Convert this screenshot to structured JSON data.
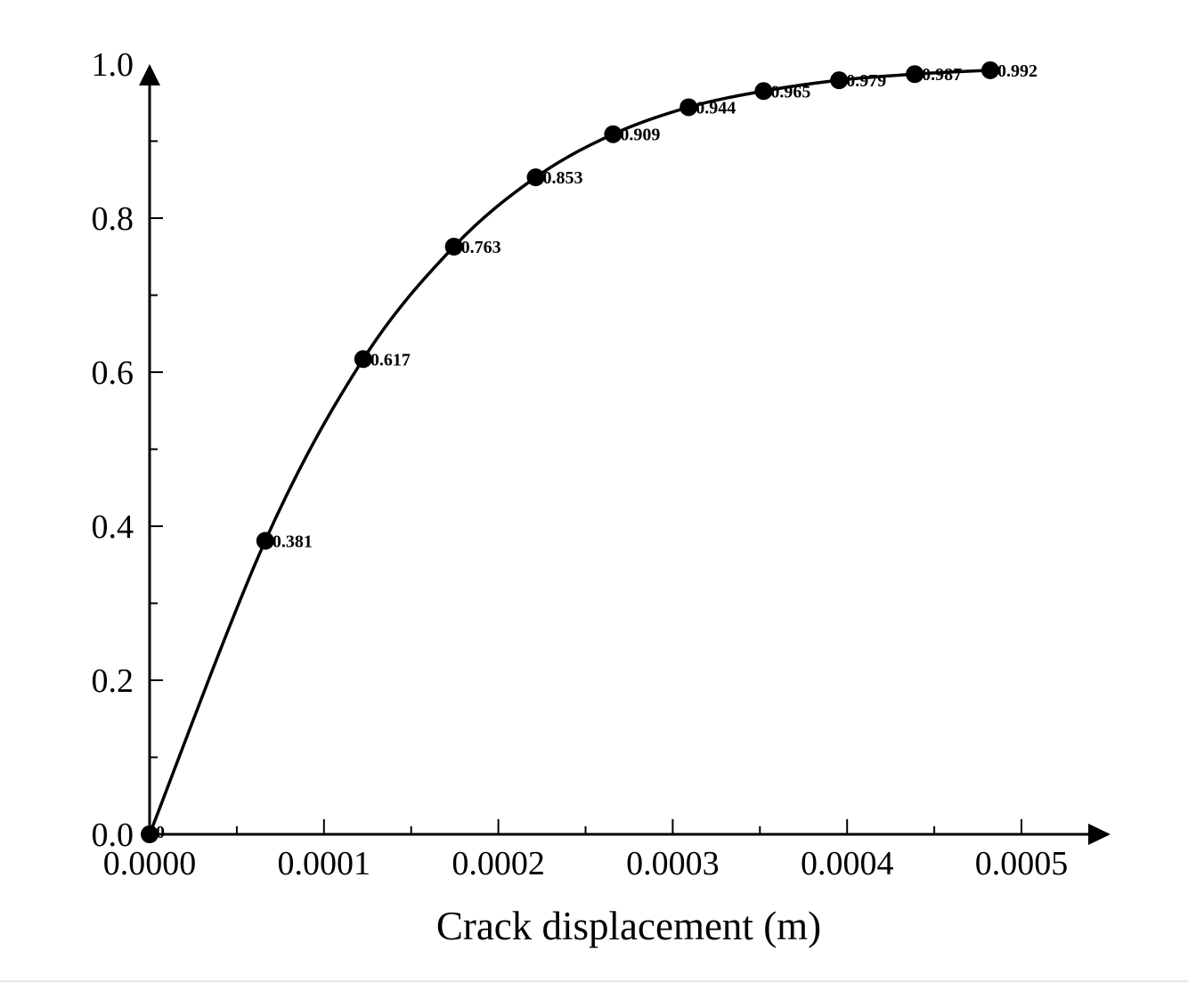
{
  "chart_data": {
    "type": "line",
    "title": "",
    "xlabel": "Crack displacement (m)",
    "ylabel": "",
    "xlim": [
      0,
      0.0005
    ],
    "ylim": [
      0,
      1.0
    ],
    "grid": false,
    "x_ticks": [
      "0.0000",
      "0.0001",
      "0.0002",
      "0.0003",
      "0.0004",
      "0.0005"
    ],
    "y_ticks": [
      "0.0",
      "0.2",
      "0.4",
      "0.6",
      "0.8",
      "1.0"
    ],
    "series": [
      {
        "color": "#000000",
        "marker": "circle",
        "x": [
          0,
          6.63e-05,
          0.0001225,
          0.0001745,
          0.0002214,
          0.0002658,
          0.0003091,
          0.0003521,
          0.0003954,
          0.0004388,
          0.0004821
        ],
        "y": [
          0,
          0.381,
          0.617,
          0.763,
          0.853,
          0.909,
          0.944,
          0.965,
          0.979,
          0.987,
          0.992
        ],
        "labels": [
          "0",
          "0.381",
          "0.617",
          "0.763",
          "0.853",
          "0.909",
          "0.944",
          "0.965",
          "0.979",
          "0.987",
          "0.992"
        ]
      }
    ]
  }
}
